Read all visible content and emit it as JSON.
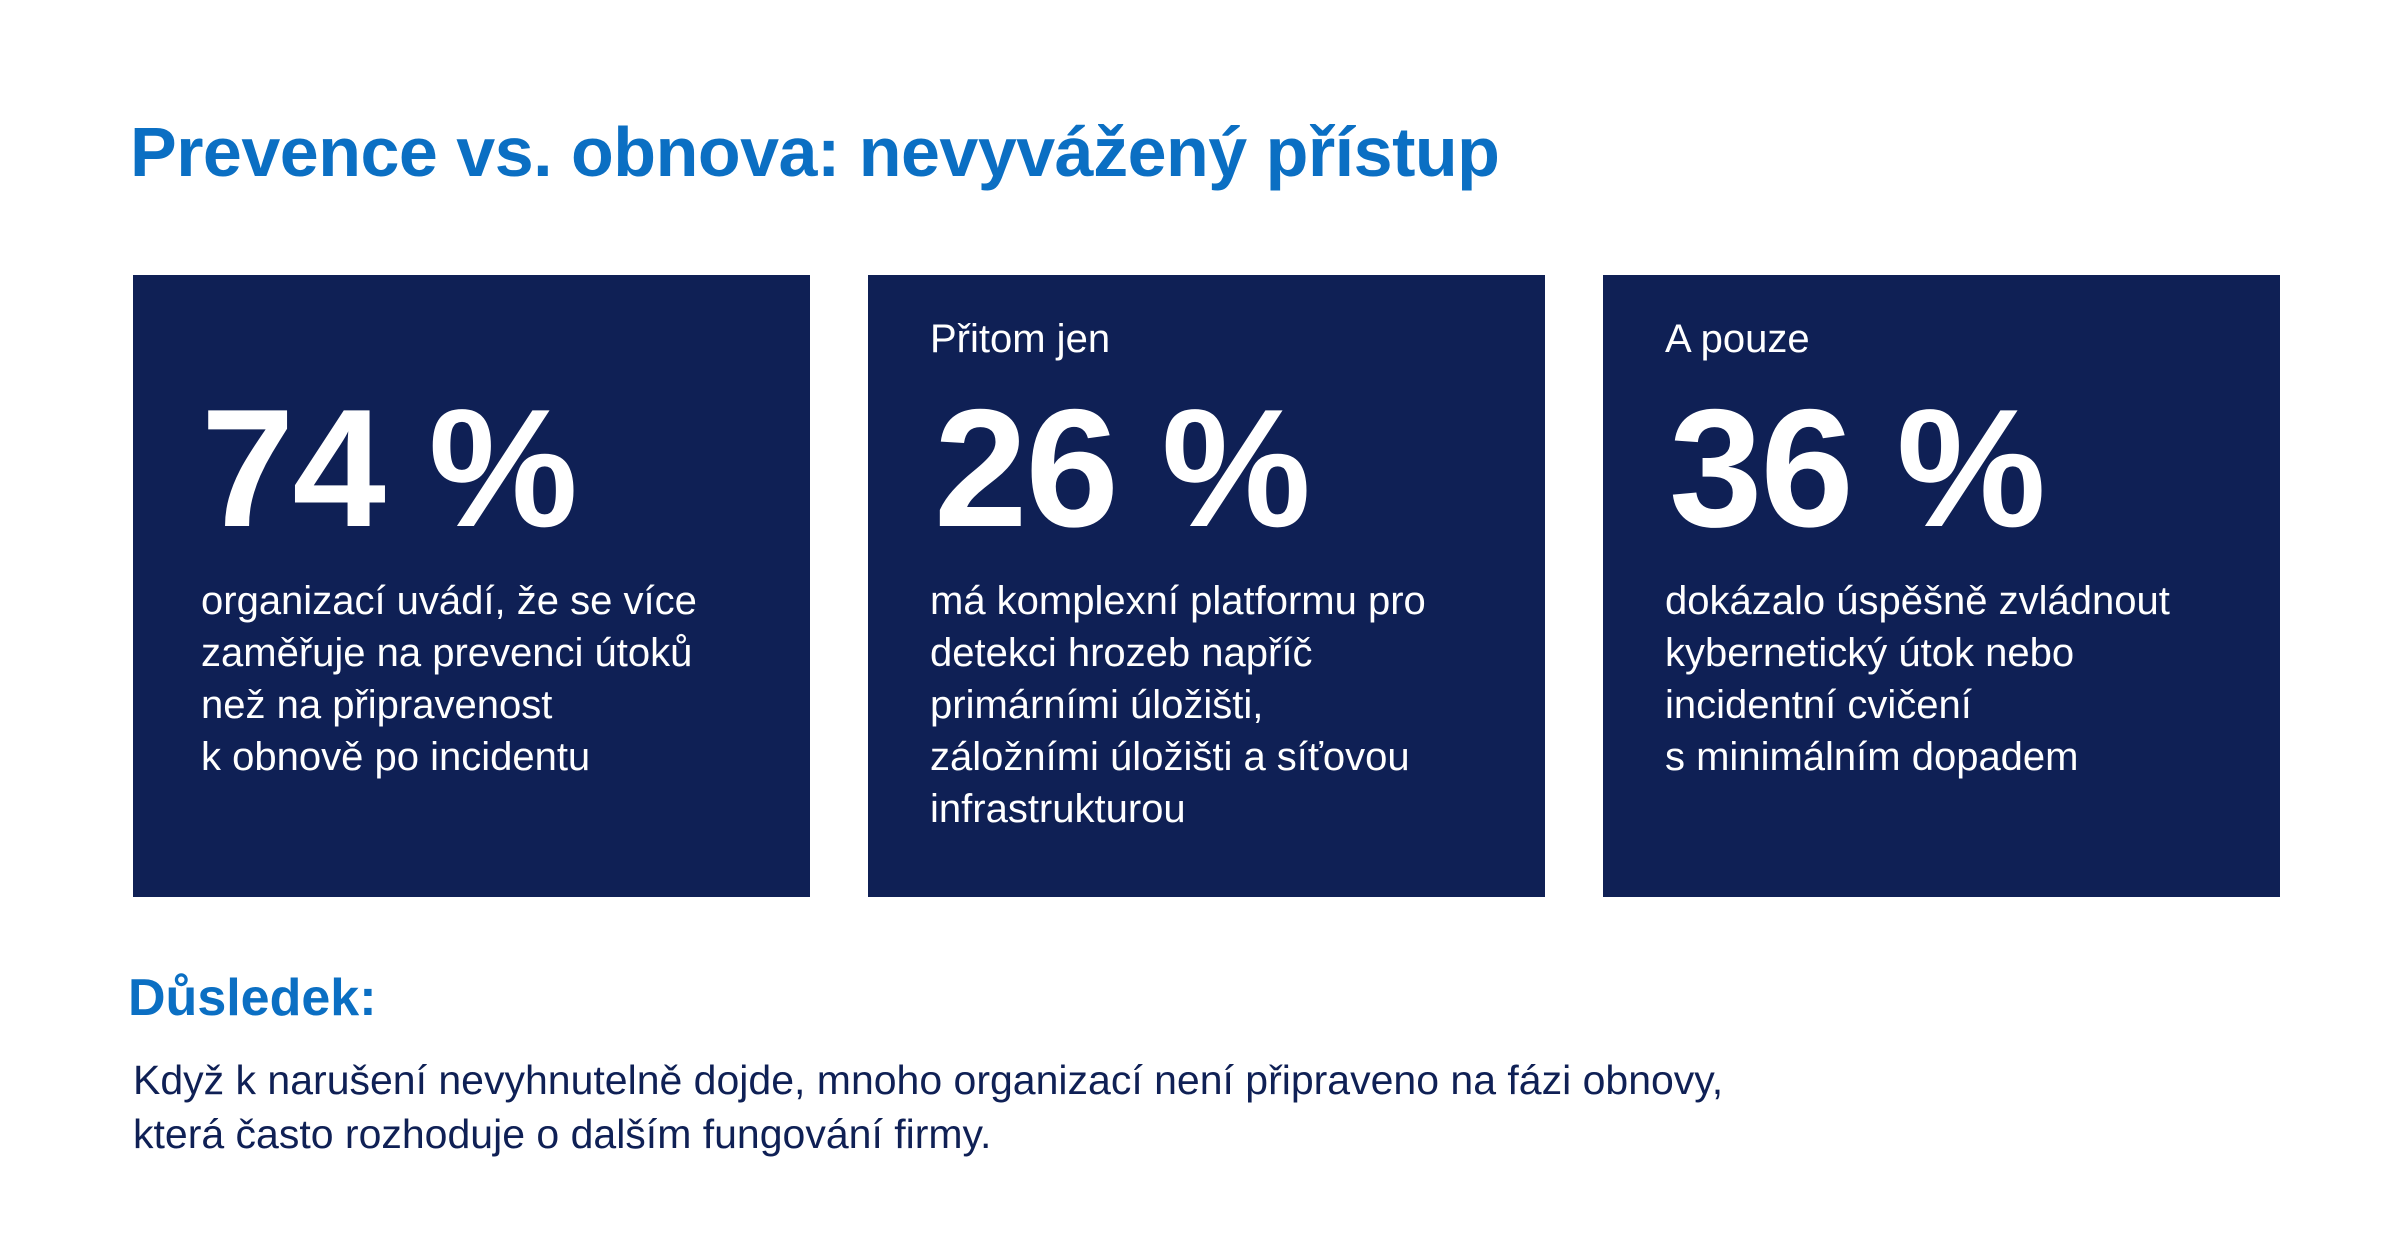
{
  "title": "Prevence vs. obnova: nevyvážený přístup",
  "cards": [
    {
      "intro": "",
      "stat": "74 %",
      "description_lines": [
        "organizací uvádí, že se více",
        "zaměřuje na prevenci útoků",
        "než na připravenost",
        "k obnově po incidentu"
      ]
    },
    {
      "intro": "Přitom jen",
      "stat": "26 %",
      "description_lines": [
        "má komplexní platformu pro",
        "detekci hrozeb napříč",
        "primárními úložišti,",
        "záložními úložišti a síťovou",
        "infrastrukturou"
      ]
    },
    {
      "intro": "A pouze",
      "stat": "36 %",
      "description_lines": [
        "dokázalo úspěšně zvládnout",
        "kybernetický útok nebo",
        "incidentní cvičení",
        "s minimálním dopadem"
      ]
    }
  ],
  "consequence": {
    "heading": "Důsledek:",
    "text_lines": [
      "Když k narušení nevyhnutelně dojde, mnoho organizací není připraveno na fázi obnovy,",
      "která často rozhoduje o dalším fungování firmy."
    ]
  },
  "colors": {
    "accent_blue": "#0b6fc3",
    "card_navy": "#0f2055",
    "text_navy": "#0f2055",
    "background": "#ffffff"
  }
}
